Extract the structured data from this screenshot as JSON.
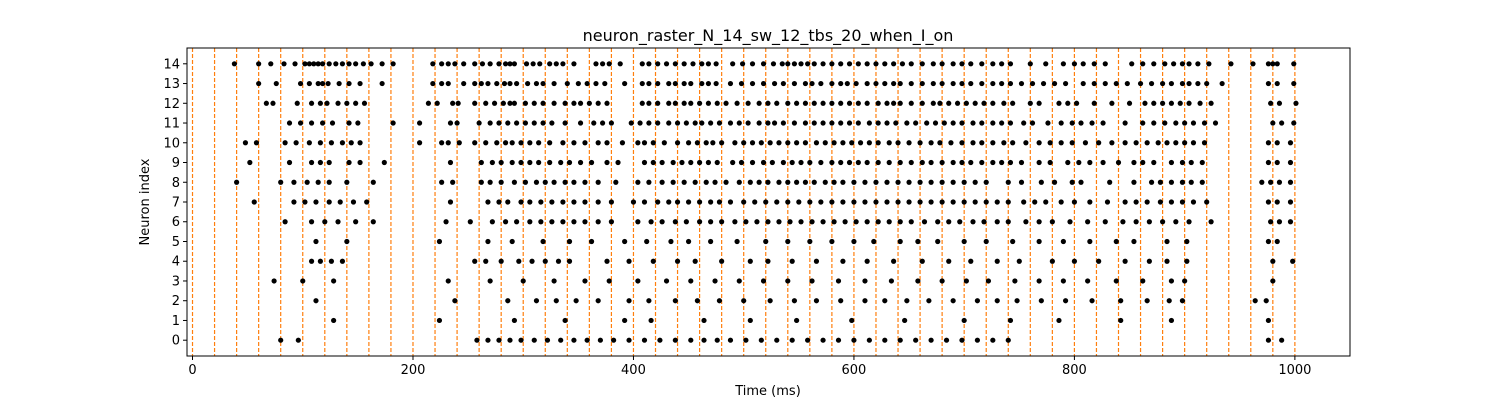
{
  "chart_data": {
    "type": "scatter",
    "title": "neuron_raster_N_14_sw_12_tbs_20_when_I_on",
    "xlabel": "Time (ms)",
    "ylabel": "Neuron index",
    "xlim": [
      -5,
      1050
    ],
    "ylim": [
      -0.8,
      14.8
    ],
    "xticks": [
      0,
      200,
      400,
      600,
      800,
      1000
    ],
    "yticks": [
      0,
      1,
      2,
      3,
      4,
      5,
      6,
      7,
      8,
      9,
      10,
      11,
      12,
      13,
      14
    ],
    "grid": false,
    "marker_color": "#000000",
    "stimulus_lines": {
      "color": "#ff7f0e",
      "style": "dashed",
      "times": [
        0,
        20,
        40,
        60,
        80,
        100,
        120,
        140,
        160,
        180,
        200,
        220,
        240,
        260,
        280,
        300,
        320,
        340,
        360,
        380,
        400,
        420,
        440,
        460,
        480,
        500,
        520,
        540,
        560,
        580,
        600,
        620,
        640,
        660,
        680,
        700,
        720,
        740,
        760,
        780,
        800,
        820,
        840,
        860,
        880,
        900,
        920,
        940,
        960,
        980,
        1000
      ]
    },
    "series": [
      {
        "neuron": 14,
        "spikes": [
          38,
          60,
          71,
          83,
          93,
          102,
          106,
          110,
          114,
          118,
          124,
          130,
          136,
          142,
          148,
          155,
          162,
          172,
          182,
          218,
          226,
          232,
          238,
          246,
          256,
          263,
          270,
          278,
          284,
          288,
          292,
          303,
          309,
          315,
          324,
          330,
          336,
          346,
          366,
          372,
          378,
          388,
          408,
          414,
          422,
          430,
          438,
          446,
          454,
          462,
          468,
          475,
          490,
          499,
          508,
          518,
          527,
          535,
          540,
          546,
          552,
          558,
          564,
          572,
          580,
          588,
          596,
          604,
          612,
          620,
          628,
          636,
          644,
          652,
          662,
          672,
          680,
          690,
          698,
          706,
          716,
          726,
          734,
          742,
          760,
          774,
          790,
          800,
          808,
          818,
          828,
          852,
          862,
          872,
          882,
          890,
          898,
          904,
          912,
          922,
          942,
          962,
          976,
          980,
          984,
          999
        ]
      },
      {
        "neuron": 13,
        "spikes": [
          60,
          76,
          98,
          106,
          114,
          118,
          123,
          133,
          142,
          152,
          172,
          218,
          226,
          232,
          246,
          256,
          262,
          268,
          276,
          283,
          288,
          294,
          304,
          312,
          318,
          328,
          340,
          350,
          358,
          366,
          374,
          392,
          408,
          414,
          422,
          432,
          438,
          446,
          452,
          462,
          468,
          475,
          488,
          498,
          508,
          518,
          528,
          536,
          546,
          556,
          562,
          570,
          580,
          588,
          594,
          602,
          612,
          620,
          628,
          636,
          642,
          652,
          662,
          672,
          680,
          690,
          698,
          706,
          716,
          726,
          734,
          742,
          752,
          762,
          772,
          782,
          792,
          808,
          818,
          828,
          838,
          848,
          860,
          870,
          880,
          888,
          898,
          904,
          912,
          920,
          934,
          976,
          984,
          999
        ]
      },
      {
        "neuron": 12,
        "spikes": [
          67,
          73,
          95,
          108,
          116,
          122,
          132,
          140,
          148,
          156,
          214,
          222,
          236,
          241,
          256,
          266,
          274,
          282,
          288,
          292,
          302,
          310,
          318,
          328,
          338,
          346,
          352,
          360,
          368,
          376,
          408,
          414,
          422,
          432,
          438,
          446,
          452,
          460,
          468,
          476,
          484,
          494,
          504,
          514,
          522,
          530,
          540,
          548,
          556,
          564,
          572,
          580,
          588,
          596,
          604,
          612,
          622,
          630,
          636,
          642,
          652,
          662,
          672,
          678,
          686,
          694,
          702,
          710,
          718,
          726,
          736,
          744,
          760,
          768,
          786,
          794,
          802,
          818,
          834,
          850,
          864,
          872,
          880,
          888,
          896,
          904,
          914,
          924,
          978,
          986,
          1001
        ]
      },
      {
        "neuron": 11,
        "spikes": [
          88,
          98,
          108,
          118,
          127,
          142,
          150,
          182,
          206,
          234,
          240,
          260,
          270,
          278,
          286,
          294,
          302,
          310,
          318,
          326,
          338,
          352,
          364,
          372,
          380,
          398,
          406,
          414,
          422,
          432,
          440,
          448,
          456,
          462,
          470,
          478,
          488,
          496,
          504,
          514,
          522,
          528,
          536,
          546,
          556,
          564,
          572,
          580,
          588,
          596,
          604,
          614,
          622,
          630,
          638,
          648,
          656,
          666,
          674,
          682,
          690,
          698,
          708,
          716,
          726,
          734,
          742,
          754,
          762,
          776,
          788,
          798,
          806,
          816,
          826,
          846,
          862,
          872,
          882,
          892,
          900,
          908,
          918,
          928,
          980,
          988,
          999
        ]
      },
      {
        "neuron": 10,
        "spikes": [
          48,
          58,
          84,
          94,
          106,
          116,
          126,
          136,
          144,
          152,
          206,
          226,
          232,
          242,
          256,
          266,
          276,
          284,
          290,
          298,
          306,
          314,
          324,
          336,
          346,
          356,
          368,
          376,
          390,
          404,
          410,
          418,
          428,
          440,
          450,
          458,
          466,
          472,
          480,
          492,
          500,
          508,
          516,
          524,
          532,
          540,
          548,
          556,
          566,
          574,
          582,
          590,
          598,
          606,
          614,
          622,
          632,
          640,
          650,
          660,
          670,
          678,
          688,
          698,
          708,
          716,
          726,
          736,
          744,
          756,
          768,
          778,
          788,
          798,
          810,
          822,
          834,
          846,
          856,
          866,
          876,
          884,
          892,
          900,
          908,
          918,
          976,
          984,
          996
        ]
      },
      {
        "neuron": 9,
        "spikes": [
          52,
          88,
          108,
          116,
          124,
          142,
          152,
          174,
          234,
          262,
          272,
          280,
          290,
          298,
          306,
          314,
          324,
          334,
          342,
          352,
          362,
          376,
          386,
          410,
          418,
          426,
          436,
          444,
          452,
          460,
          468,
          476,
          490,
          498,
          508,
          518,
          526,
          536,
          544,
          552,
          560,
          570,
          580,
          588,
          596,
          604,
          612,
          622,
          632,
          642,
          652,
          662,
          670,
          680,
          690,
          698,
          706,
          716,
          726,
          734,
          742,
          752,
          768,
          778,
          794,
          804,
          814,
          826,
          840,
          854,
          862,
          872,
          888,
          898,
          906,
          916,
          976,
          984,
          996
        ]
      },
      {
        "neuron": 8,
        "spikes": [
          40,
          80,
          92,
          104,
          114,
          124,
          140,
          164,
          226,
          236,
          262,
          270,
          280,
          292,
          302,
          312,
          320,
          328,
          338,
          346,
          356,
          368,
          384,
          404,
          414,
          426,
          436,
          446,
          456,
          466,
          474,
          484,
          496,
          506,
          514,
          522,
          532,
          540,
          548,
          556,
          564,
          574,
          582,
          590,
          600,
          610,
          620,
          630,
          640,
          650,
          660,
          670,
          680,
          690,
          700,
          710,
          720,
          740,
          752,
          770,
          782,
          798,
          806,
          832,
          854,
          870,
          878,
          888,
          898,
          906,
          916,
          970,
          978,
          986,
          996
        ]
      },
      {
        "neuron": 7,
        "spikes": [
          56,
          92,
          102,
          112,
          124,
          134,
          146,
          158,
          234,
          268,
          278,
          286,
          298,
          306,
          316,
          326,
          336,
          346,
          356,
          368,
          380,
          400,
          410,
          422,
          432,
          440,
          450,
          460,
          470,
          478,
          488,
          500,
          510,
          520,
          530,
          540,
          550,
          560,
          570,
          580,
          590,
          600,
          610,
          620,
          630,
          640,
          650,
          660,
          670,
          680,
          690,
          700,
          710,
          720,
          730,
          740,
          754,
          764,
          774,
          788,
          800,
          814,
          830,
          846,
          856,
          866,
          878,
          888,
          898,
          908,
          920,
          976,
          984,
          996
        ]
      },
      {
        "neuron": 6,
        "spikes": [
          84,
          108,
          120,
          132,
          148,
          164,
          230,
          252,
          272,
          284,
          294,
          306,
          316,
          326,
          336,
          346,
          356,
          368,
          380,
          404,
          416,
          426,
          438,
          448,
          460,
          470,
          480,
          492,
          502,
          512,
          522,
          532,
          542,
          552,
          562,
          572,
          582,
          592,
          602,
          612,
          622,
          632,
          642,
          652,
          664,
          676,
          686,
          696,
          708,
          718,
          730,
          740,
          756,
          768,
          780,
          796,
          812,
          828,
          844,
          856,
          868,
          880,
          892,
          904,
          924,
          978,
          986,
          996
        ]
      },
      {
        "neuron": 5,
        "spikes": [
          112,
          140,
          224,
          268,
          290,
          318,
          342,
          362,
          392,
          412,
          434,
          450,
          470,
          494,
          520,
          540,
          560,
          580,
          600,
          618,
          642,
          658,
          676,
          700,
          720,
          744,
          768,
          790,
          814,
          838,
          854,
          884,
          902,
          976,
          984
        ]
      },
      {
        "neuron": 4,
        "spikes": [
          108,
          116,
          126,
          136,
          256,
          266,
          280,
          296,
          308,
          320,
          332,
          342,
          376,
          396,
          418,
          440,
          456,
          480,
          506,
          522,
          544,
          566,
          590,
          612,
          636,
          662,
          686,
          706,
          730,
          750,
          780,
          800,
          822,
          846,
          868,
          884,
          902,
          980,
          998
        ]
      },
      {
        "neuron": 3,
        "spikes": [
          74,
          100,
          128,
          232,
          270,
          300,
          328,
          356,
          378,
          404,
          430,
          452,
          474,
          496,
          518,
          540,
          562,
          586,
          610,
          634,
          658,
          680,
          702,
          722,
          746,
          768,
          790,
          812,
          838,
          862,
          888,
          900,
          980
        ]
      },
      {
        "neuron": 2,
        "spikes": [
          112,
          238,
          286,
          312,
          330,
          348,
          368,
          396,
          414,
          438,
          458,
          478,
          500,
          524,
          546,
          566,
          588,
          610,
          628,
          648,
          668,
          690,
          712,
          730,
          748,
          770,
          792,
          816,
          842,
          866,
          886,
          898,
          964,
          974
        ]
      },
      {
        "neuron": 1,
        "spikes": [
          128,
          224,
          292,
          338,
          392,
          416,
          464,
          506,
          548,
          598,
          646,
          700,
          742,
          786,
          842,
          888,
          976
        ]
      },
      {
        "neuron": 0,
        "spikes": [
          80,
          96,
          258,
          268,
          278,
          288,
          298,
          310,
          322,
          334,
          346,
          358,
          370,
          382,
          396,
          410,
          424,
          438,
          452,
          464,
          476,
          488,
          502,
          516,
          530,
          544,
          558,
          572,
          586,
          600,
          614,
          628,
          642,
          656,
          670,
          684,
          698,
          712,
          726,
          740,
          976,
          988
        ]
      }
    ]
  }
}
